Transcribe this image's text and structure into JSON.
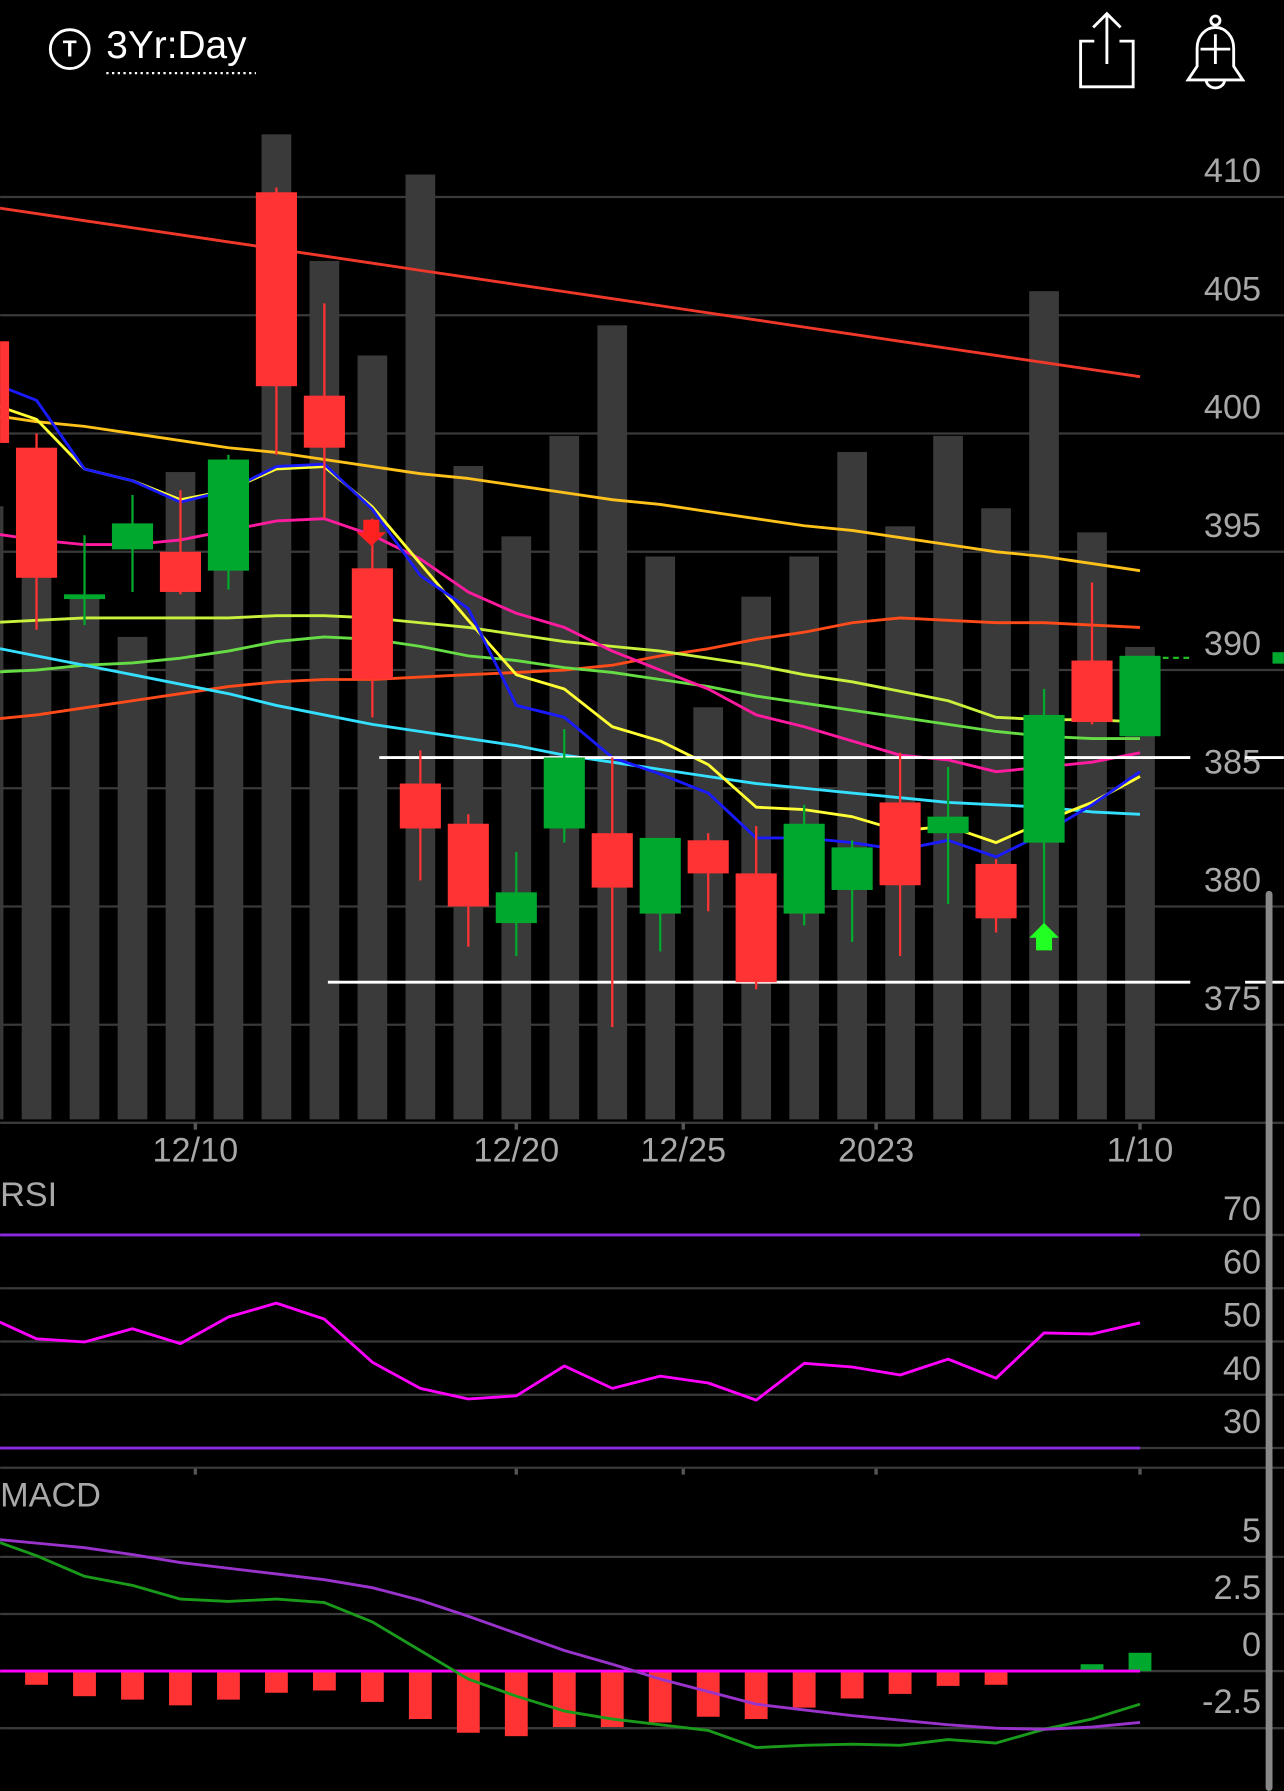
{
  "header": {
    "icon": "T",
    "title": "3Yr:Day"
  },
  "chart_data": [
    {
      "type": "candlestick",
      "open": [
        403.9,
        399.4,
        393.0,
        395.1,
        395.0,
        394.2,
        410.2,
        401.6,
        394.3,
        385.2,
        383.5,
        379.3,
        383.3,
        383.1,
        379.7,
        382.8,
        381.4,
        379.7,
        380.7,
        384.4,
        383.1,
        381.8,
        382.7,
        390.4,
        387.2
      ],
      "high": [
        404.2,
        400.0,
        395.7,
        397.4,
        397.6,
        399.1,
        410.4,
        405.5,
        396.4,
        386.6,
        383.9,
        382.3,
        387.5,
        386.3,
        382.9,
        383.1,
        383.4,
        384.3,
        382.8,
        386.5,
        385.9,
        382.0,
        389.2,
        393.7,
        390.6
      ],
      "low": [
        399.3,
        391.7,
        391.9,
        393.3,
        393.2,
        393.4,
        399.1,
        396.4,
        388.0,
        381.1,
        378.3,
        377.9,
        382.7,
        374.9,
        378.1,
        379.8,
        376.5,
        379.2,
        378.5,
        377.9,
        380.1,
        378.9,
        378.6,
        387.7,
        387.2
      ],
      "close": [
        399.6,
        393.9,
        393.2,
        396.2,
        393.3,
        398.9,
        402.0,
        399.4,
        389.6,
        383.3,
        380.0,
        380.6,
        386.3,
        380.8,
        382.9,
        381.4,
        376.8,
        383.5,
        382.5,
        380.9,
        383.8,
        379.5,
        388.1,
        387.8,
        390.6
      ],
      "up_color": "#00a82d",
      "down_color": "#ff3333",
      "volume": [
        61,
        61.6,
        52,
        48,
        64.4,
        59.4,
        98,
        85.4,
        76,
        94,
        65,
        58,
        68,
        79,
        56,
        41,
        52,
        56,
        66.4,
        59,
        68,
        60.8,
        82.4,
        58.4,
        47
      ],
      "volume_color": "#3a3a3a",
      "volume_lim": [
        0,
        100
      ],
      "series": [
        {
          "color": "#f0382a",
          "values": [
            409.6,
            409.3,
            409.0,
            408.7,
            408.4,
            408.1,
            407.8,
            407.5,
            407.2,
            406.9,
            406.6,
            406.3,
            406.0,
            405.7,
            405.4,
            405.1,
            404.8,
            404.5,
            404.2,
            403.9,
            403.6,
            403.3,
            403.0,
            402.7,
            402.4
          ]
        },
        {
          "color": "#ffc21a",
          "values": [
            400.8,
            400.5,
            400.3,
            400.0,
            399.7,
            399.4,
            399.2,
            398.9,
            398.6,
            398.3,
            398.1,
            397.8,
            397.5,
            397.2,
            397.0,
            396.7,
            396.4,
            396.1,
            395.9,
            395.6,
            395.3,
            395.0,
            394.8,
            394.5,
            394.2
          ]
        },
        {
          "color": "#ff4a1a",
          "values": [
            387.9,
            388.1,
            388.4,
            388.7,
            389.0,
            389.3,
            389.5,
            389.6,
            389.6,
            389.7,
            389.8,
            389.9,
            390.0,
            390.2,
            390.6,
            390.9,
            391.3,
            391.6,
            392.0,
            392.2,
            392.1,
            392.0,
            392.0,
            391.9,
            391.8
          ]
        },
        {
          "color": "#c8f03c",
          "values": [
            392.0,
            392.1,
            392.2,
            392.2,
            392.2,
            392.2,
            392.3,
            392.3,
            392.2,
            392.0,
            391.8,
            391.5,
            391.2,
            391.0,
            390.8,
            390.5,
            390.2,
            389.8,
            389.5,
            389.1,
            388.7,
            388.0,
            387.9,
            387.9,
            387.8
          ]
        },
        {
          "color": "#66dd44",
          "values": [
            389.9,
            390.0,
            390.2,
            390.3,
            390.5,
            390.8,
            391.2,
            391.4,
            391.3,
            391.0,
            390.6,
            390.4,
            390.1,
            389.9,
            389.6,
            389.3,
            388.9,
            388.6,
            388.3,
            388.0,
            387.7,
            387.4,
            387.2,
            387.1,
            387.1
          ]
        },
        {
          "color": "#ff1aa0",
          "values": [
            395.8,
            395.5,
            395.3,
            395.3,
            395.5,
            395.9,
            396.3,
            396.4,
            395.7,
            394.7,
            393.3,
            392.4,
            391.8,
            390.8,
            390.0,
            389.2,
            388.1,
            387.6,
            387.0,
            386.4,
            386.2,
            385.7,
            385.9,
            386.1,
            386.5
          ]
        },
        {
          "color": "#33e0ff",
          "values": [
            391.0,
            390.6,
            390.2,
            389.8,
            389.4,
            389.0,
            388.5,
            388.1,
            387.7,
            387.4,
            387.1,
            386.8,
            386.4,
            386.1,
            385.8,
            385.5,
            385.2,
            385.0,
            384.8,
            384.6,
            384.4,
            384.3,
            384.2,
            384.0,
            383.9
          ]
        },
        {
          "color": "#ffff33",
          "values": [
            401.3,
            400.6,
            398.5,
            398.0,
            397.2,
            397.6,
            398.5,
            398.6,
            396.9,
            394.5,
            392.1,
            389.8,
            389.2,
            387.6,
            387.0,
            386.0,
            384.2,
            384.1,
            383.8,
            383.2,
            383.4,
            382.7,
            383.6,
            384.4,
            385.5
          ]
        },
        {
          "color": "#1a1aff",
          "values": [
            402.2,
            401.4,
            398.5,
            398.0,
            397.1,
            397.6,
            398.6,
            398.7,
            396.8,
            394.0,
            392.6,
            388.5,
            388.0,
            386.3,
            385.6,
            384.8,
            382.9,
            382.9,
            382.7,
            382.4,
            382.8,
            382.1,
            383.1,
            384.3,
            385.7
          ]
        }
      ],
      "levels": [
        386.3,
        376.8
      ],
      "level_color": "#ffffff",
      "xlim": [
        0.24,
        27
      ],
      "xticks": [
        {
          "value": 4.31,
          "label": "12/10"
        },
        {
          "value": 11,
          "label": "12/20"
        },
        {
          "value": 14.48,
          "label": "12/25"
        },
        {
          "value": 18.5,
          "label": "2023"
        },
        {
          "value": 24,
          "label": "1/10"
        }
      ],
      "ylim": [
        371,
        413.5
      ],
      "yticks": [
        375,
        380,
        385,
        390,
        395,
        400,
        405,
        410
      ],
      "grid": true
    },
    {
      "type": "line",
      "title": "RSI",
      "series": [
        {
          "color": "#ff00ff",
          "values": [
            54.6,
            50.5,
            49.9,
            52.4,
            49.6,
            54.6,
            57.2,
            54.2,
            46.1,
            41.2,
            39.2,
            39.8,
            45.4,
            41.2,
            43.5,
            42.2,
            39.0,
            45.9,
            45.2,
            43.7,
            46.7,
            43.1,
            51.6,
            51.4,
            53.5
          ]
        }
      ],
      "bands": [
        30,
        70
      ],
      "band_color": "#8a2be2",
      "ylim": [
        26.3,
        79.9
      ],
      "yticks": [
        30,
        40,
        50,
        60,
        70
      ],
      "grid": true
    },
    {
      "type": "macd",
      "title": "MACD",
      "series": [
        {
          "color": "#1a9a1a",
          "values": [
            5.8,
            5.05,
            4.15,
            3.75,
            3.15,
            3.05,
            3.15,
            3.0,
            2.15,
            0.9,
            -0.35,
            -1.1,
            -1.75,
            -2.1,
            -2.35,
            -2.6,
            -3.35,
            -3.25,
            -3.2,
            -3.25,
            -3.0,
            -3.15,
            -2.55,
            -2.1,
            -1.45
          ]
        },
        {
          "color": "#9933cc",
          "values": [
            5.8,
            5.6,
            5.4,
            5.1,
            4.75,
            4.5,
            4.25,
            4.0,
            3.65,
            3.1,
            2.4,
            1.65,
            0.9,
            0.3,
            -0.35,
            -0.9,
            -1.45,
            -1.7,
            -1.95,
            -2.15,
            -2.35,
            -2.5,
            -2.55,
            -2.45,
            -2.25
          ]
        }
      ],
      "histogram": [
        null,
        -0.6,
        -1.1,
        -1.25,
        -1.5,
        -1.25,
        -0.95,
        -0.85,
        -1.35,
        -2.1,
        -2.7,
        -2.85,
        -2.45,
        -2.45,
        -2.25,
        -2.0,
        -2.1,
        -1.6,
        -1.2,
        -1.0,
        -0.65,
        -0.6,
        0,
        0.3,
        0.8
      ],
      "up_color": "#00a82d",
      "down_color": "#ff3333",
      "zero_color": "#ff00ff",
      "ylim": [
        -5.25,
        8.4
      ],
      "yticks": [
        -2.5,
        0,
        2.5,
        5
      ],
      "grid": true
    }
  ]
}
